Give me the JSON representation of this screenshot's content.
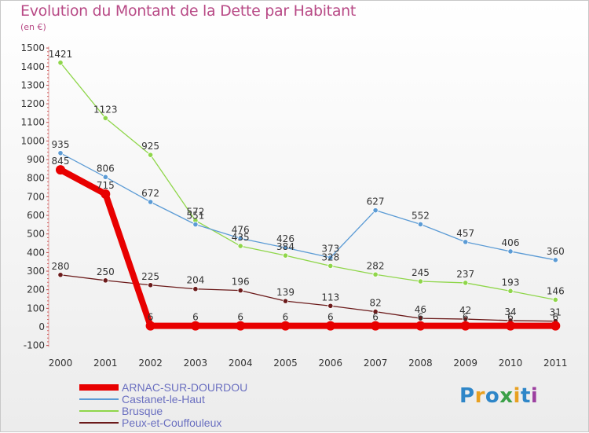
{
  "page": {
    "title": "Evolution du Montant de la Dette par Habitant",
    "unit": "(en €)",
    "logo": "Proxiti"
  },
  "chart_data": {
    "type": "line",
    "title": "Evolution du Montant de la Dette par Habitant",
    "ylabel": "(en €)",
    "xlabel": "",
    "x": [
      "2000",
      "2001",
      "2002",
      "2003",
      "2004",
      "2005",
      "2006",
      "2007",
      "2008",
      "2009",
      "2010",
      "2011"
    ],
    "ylim": [
      -100,
      1500
    ],
    "yticks": [
      -100,
      0,
      100,
      200,
      300,
      400,
      500,
      600,
      700,
      800,
      900,
      1000,
      1100,
      1200,
      1300,
      1400,
      1500
    ],
    "grid": false,
    "legend_position": "bottom-left",
    "series": [
      {
        "name": "ARNAC-SUR-DOURDOU",
        "color": "#e80000",
        "bold": true,
        "values": [
          845,
          715,
          6,
          6,
          6,
          6,
          6,
          6,
          6,
          6,
          6,
          6
        ]
      },
      {
        "name": "Castanet-le-Haut",
        "color": "#5b9bd5",
        "values": [
          935,
          806,
          672,
          551,
          476,
          426,
          373,
          627,
          552,
          457,
          406,
          360
        ]
      },
      {
        "name": "Brusque",
        "color": "#8fd64a",
        "values": [
          1421,
          1123,
          925,
          572,
          435,
          384,
          328,
          282,
          245,
          237,
          193,
          146
        ]
      },
      {
        "name": "Peux-et-Couffouleux",
        "color": "#6b1a1a",
        "values": [
          280,
          250,
          225,
          204,
          196,
          139,
          113,
          82,
          46,
          42,
          34,
          31
        ]
      }
    ]
  }
}
